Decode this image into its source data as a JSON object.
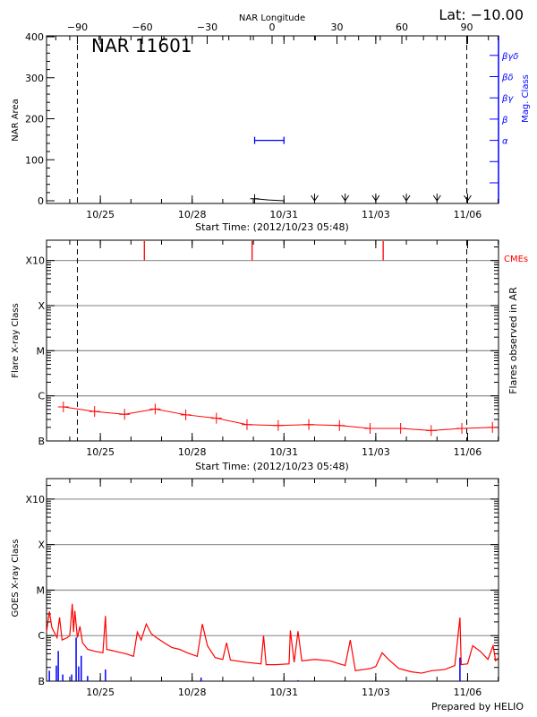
{
  "header": {
    "lat_label": "Lat: −10.00",
    "region_title": "NAR 11601",
    "prepared_by": "Prepared by HELIO"
  },
  "chart_data": [
    {
      "type": "line",
      "title": "NAR 11601",
      "top_axis_label": "NAR Longitude",
      "top_axis_ticks": [
        {
          "value": -90,
          "label": "−90"
        },
        {
          "value": -60,
          "label": "−60"
        },
        {
          "value": -30,
          "label": "−30"
        },
        {
          "value": 0,
          "label": "0"
        },
        {
          "value": 30,
          "label": "30"
        },
        {
          "value": 60,
          "label": "60"
        },
        {
          "value": 90,
          "label": "90"
        }
      ],
      "limb_longitudes": [
        -90,
        90
      ],
      "xlabel": "Start Time: (2012/10/23 05:48)",
      "x_start": "2012/10/23 05:48",
      "x_end": "2012/11/07 00:15",
      "x_ticks": [
        "10/25",
        "10/28",
        "10/31",
        "11/03",
        "11/06"
      ],
      "ylabel": "NAR Area",
      "ylim": [
        0,
        400
      ],
      "y_ticks": [
        0,
        100,
        200,
        300,
        400
      ],
      "area_series": [
        {
          "t": "10/30 01:00",
          "v": 5
        },
        {
          "t": "10/30 12:00",
          "v": 2
        },
        {
          "t": "10/31 00:00",
          "v": 0
        }
      ],
      "zero_area_markers": [
        "11/01 00:00",
        "11/02 00:00",
        "11/03 00:00",
        "11/04 00:00",
        "11/05 00:00",
        "11/06 00:00"
      ],
      "y2label": "Mag. Class",
      "y2_ticks": [
        "",
        "",
        "α",
        "β",
        "βγ",
        "βδ",
        "βγδ"
      ],
      "mag_class_series": [
        {
          "t_start": "10/30 01:00",
          "t_end": "10/31 00:00",
          "class": "α"
        }
      ],
      "colors": {
        "area": "#000000",
        "mag_class": "#0000ff",
        "limb": "#000000"
      }
    },
    {
      "type": "line",
      "ylabel": "Flare X-ray Class",
      "y2label": "Flares observed in AR",
      "xlabel": "Start Time: (2012/10/23 05:48)",
      "x_start": "2012/10/23 05:48",
      "x_end": "2012/11/07 00:15",
      "x_ticks": [
        "10/25",
        "10/28",
        "10/31",
        "11/03",
        "11/06"
      ],
      "y_scale": "log",
      "y_ticks": [
        {
          "label": "B",
          "flux": 1e-07
        },
        {
          "label": "C",
          "flux": 1e-06
        },
        {
          "label": "M",
          "flux": 1e-05
        },
        {
          "label": "X",
          "flux": 0.0001
        },
        {
          "label": "X10",
          "flux": 0.001
        }
      ],
      "grid": true,
      "limb_longitudes": [
        -90,
        90
      ],
      "series": [
        {
          "values": [
            {
              "t": "10/23 19:00",
              "flux": 5.7e-07
            },
            {
              "t": "10/24 19:30",
              "flux": 4.5e-07
            },
            {
              "t": "10/25 19:00",
              "flux": 3.9e-07
            },
            {
              "t": "10/26 19:00",
              "flux": 5.1e-07
            },
            {
              "t": "10/27 19:00",
              "flux": 3.8e-07
            },
            {
              "t": "10/28 19:00",
              "flux": 3.2e-07
            },
            {
              "t": "10/29 19:00",
              "flux": 2.3e-07
            },
            {
              "t": "10/30 19:30",
              "flux": 2.2e-07
            },
            {
              "t": "10/31 19:30",
              "flux": 2.3e-07
            },
            {
              "t": "11/01 19:30",
              "flux": 2.2e-07
            },
            {
              "t": "11/02 19:30",
              "flux": 1.9e-07
            },
            {
              "t": "11/03 19:30",
              "flux": 1.9e-07
            },
            {
              "t": "11/04 19:30",
              "flux": 1.7e-07
            },
            {
              "t": "11/05 19:30",
              "flux": 1.9e-07
            },
            {
              "t": "11/06 19:30",
              "flux": 2e-07
            }
          ]
        }
      ],
      "cme_label": "CMEs",
      "cme_times": [
        "10/26 10:30",
        "10/29 23:00",
        "11/03 05:48"
      ],
      "colors": {
        "flares": "#ff0000",
        "cme": "#ff0000",
        "grid": "#999999"
      }
    },
    {
      "type": "line",
      "ylabel": "GOES X-ray Class",
      "x_start": "2012/10/23 05:48",
      "x_end": "2012/11/07 00:15",
      "x_ticks": [
        "10/25",
        "10/28",
        "10/31",
        "11/03",
        "11/06"
      ],
      "y_scale": "log",
      "y_ticks": [
        {
          "label": "B",
          "flux": 1e-07
        },
        {
          "label": "C",
          "flux": 1e-06
        },
        {
          "label": "M",
          "flux": 1e-05
        },
        {
          "label": "X",
          "flux": 0.0001
        },
        {
          "label": "X10",
          "flux": 0.001
        }
      ],
      "grid": true,
      "series": [
        {
          "color": "#ff0000",
          "values": [
            [
              "10/23 05:50",
              1.2e-06
            ],
            [
              "10/23 08:00",
              3.4e-06
            ],
            [
              "10/23 10:00",
              1.5e-06
            ],
            [
              "10/23 14:00",
              9e-07
            ],
            [
              "10/23 16:00",
              2.5e-06
            ],
            [
              "10/23 18:00",
              8e-07
            ],
            [
              "10/23 22:00",
              9e-07
            ],
            [
              "10/24 00:00",
              1e-06
            ],
            [
              "10/24 02:00",
              5e-06
            ],
            [
              "10/24 03:00",
              1.2e-06
            ],
            [
              "10/24 04:00",
              3.5e-06
            ],
            [
              "10/24 06:00",
              9e-07
            ],
            [
              "10/24 08:00",
              1.6e-06
            ],
            [
              "10/24 10:00",
              7e-07
            ],
            [
              "10/24 14:00",
              5e-07
            ],
            [
              "10/24 20:00",
              4.5e-07
            ],
            [
              "10/25 02:00",
              4.2e-07
            ],
            [
              "10/25 04:00",
              2.7e-06
            ],
            [
              "10/25 05:00",
              5e-07
            ],
            [
              "10/25 12:00",
              4.5e-07
            ],
            [
              "10/25 20:00",
              4e-07
            ],
            [
              "10/26 02:00",
              3.5e-07
            ],
            [
              "10/26 05:00",
              1.2e-06
            ],
            [
              "10/26 08:00",
              8e-07
            ],
            [
              "10/26 12:00",
              1.8e-06
            ],
            [
              "10/26 16:00",
              1.1e-06
            ],
            [
              "10/26 20:00",
              9e-07
            ],
            [
              "10/27 02:00",
              7e-07
            ],
            [
              "10/27 08:00",
              5.5e-07
            ],
            [
              "10/27 14:00",
              5e-07
            ],
            [
              "10/27 20:00",
              4.2e-07
            ],
            [
              "10/28 04:00",
              3.5e-07
            ],
            [
              "10/28 08:00",
              1.8e-06
            ],
            [
              "10/28 12:00",
              6e-07
            ],
            [
              "10/28 18:00",
              3.3e-07
            ],
            [
              "10/29 00:00",
              3e-07
            ],
            [
              "10/29 03:00",
              7e-07
            ],
            [
              "10/29 06:00",
              2.9e-07
            ],
            [
              "10/29 18:00",
              2.6e-07
            ],
            [
              "10/30 06:00",
              2.4e-07
            ],
            [
              "10/30 08:00",
              1e-06
            ],
            [
              "10/30 10:00",
              2.3e-07
            ],
            [
              "10/30 18:00",
              2.3e-07
            ],
            [
              "10/31 04:00",
              2.4e-07
            ],
            [
              "10/31 05:00",
              1.3e-06
            ],
            [
              "10/31 08:00",
              2.6e-07
            ],
            [
              "10/31 11:00",
              1.25e-06
            ],
            [
              "10/31 14:00",
              2.8e-07
            ],
            [
              "11/01 00:00",
              3e-07
            ],
            [
              "11/01 12:00",
              2.8e-07
            ],
            [
              "11/02 00:00",
              2.2e-07
            ],
            [
              "11/02 04:00",
              8e-07
            ],
            [
              "11/02 08:00",
              1.7e-07
            ],
            [
              "11/02 20:00",
              1.9e-07
            ],
            [
              "11/03 00:00",
              2.1e-07
            ],
            [
              "11/03 05:00",
              4.2e-07
            ],
            [
              "11/03 10:00",
              3e-07
            ],
            [
              "11/03 18:00",
              1.9e-07
            ],
            [
              "11/04 04:00",
              1.6e-07
            ],
            [
              "11/04 12:00",
              1.5e-07
            ],
            [
              "11/04 20:00",
              1.7e-07
            ],
            [
              "11/05 06:00",
              1.8e-07
            ],
            [
              "11/05 14:00",
              2.2e-07
            ],
            [
              "11/05 18:00",
              2.5e-06
            ],
            [
              "11/05 19:00",
              2.3e-07
            ],
            [
              "11/06 00:00",
              2.4e-07
            ],
            [
              "11/06 04:00",
              6e-07
            ],
            [
              "11/06 10:00",
              4.5e-07
            ],
            [
              "11/06 16:00",
              3e-07
            ],
            [
              "11/06 20:00",
              6e-07
            ],
            [
              "11/06 22:00",
              2.8e-07
            ],
            [
              "11/07 00:00",
              3.2e-07
            ]
          ]
        },
        {
          "color": "#0000ff",
          "type": "impulses",
          "values": [
            [
              "10/23 08:00",
              1.7e-07
            ],
            [
              "10/23 13:30",
              2.2e-07
            ],
            [
              "10/23 15:00",
              4.6e-07
            ],
            [
              "10/23 18:30",
              1.4e-07
            ],
            [
              "10/24 01:30",
              1.4e-07
            ],
            [
              "10/24 05:00",
              9.1e-07
            ],
            [
              "10/24 07:00",
              2.1e-07
            ],
            [
              "10/24 09:00",
              3.6e-07
            ],
            [
              "10/24 14:00",
              1.3e-07
            ],
            [
              "10/25 04:00",
              1.8e-07
            ],
            [
              "10/28 07:00",
              1.2e-07
            ],
            [
              "10/31 11:00",
              1.05e-07
            ],
            [
              "11/05 18:00",
              3.3e-07
            ]
          ]
        }
      ],
      "colors": {
        "grid": "#999999"
      }
    }
  ]
}
